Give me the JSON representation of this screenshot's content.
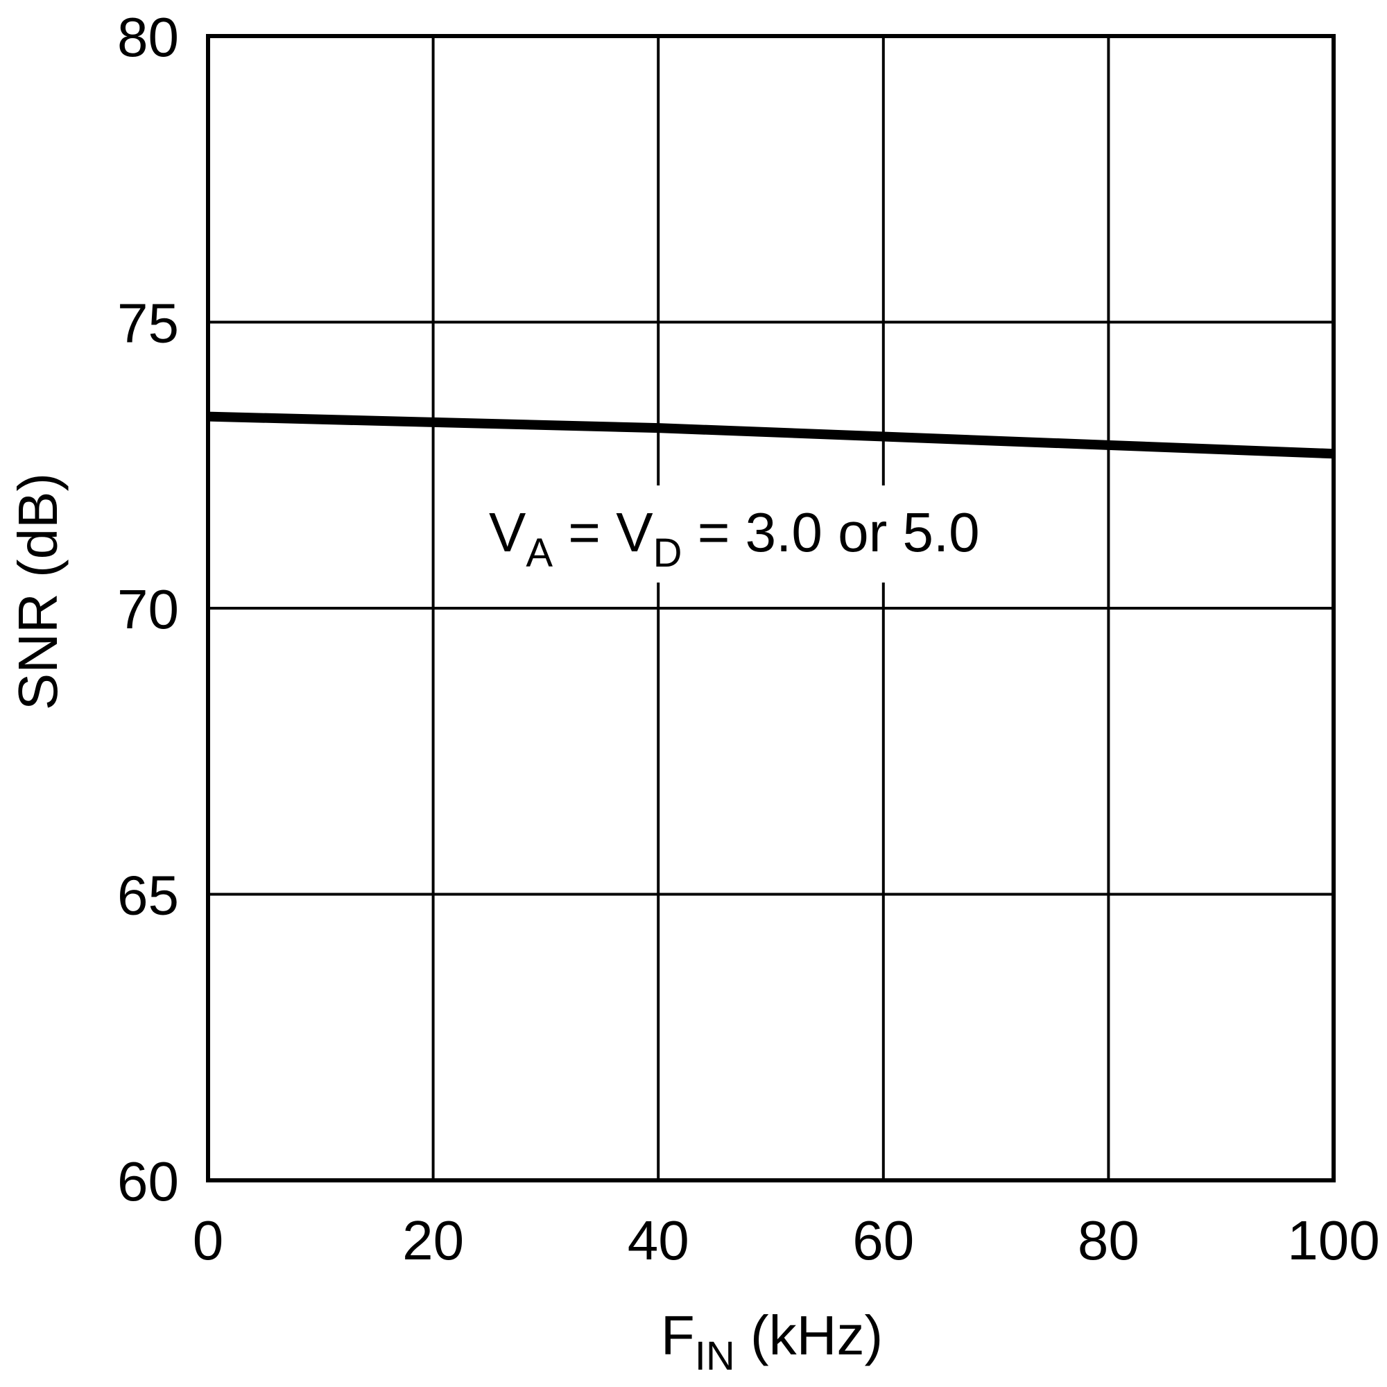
{
  "chart_data": {
    "type": "line",
    "title": "",
    "xlabel": {
      "main": "F",
      "sub": "IN",
      "unit": " (kHz)"
    },
    "ylabel": "SNR (dB)",
    "xlim": [
      0,
      100
    ],
    "ylim": [
      60,
      80
    ],
    "xticks": [
      "0",
      "20",
      "40",
      "60",
      "80",
      "100"
    ],
    "yticks": [
      "60",
      "65",
      "70",
      "75",
      "80"
    ],
    "grid": true,
    "series": [
      {
        "x": [
          0,
          20,
          40,
          60,
          80,
          100
        ],
        "y": [
          73.35,
          73.25,
          73.15,
          73.0,
          72.85,
          72.7
        ]
      }
    ],
    "annotations": {
      "supply": {
        "v1": "V",
        "s1": "A",
        "eq1": " = ",
        "v2": "V",
        "s2": "D",
        "rest": " = 3.0 or 5.0"
      }
    },
    "colors": {
      "line": "#000000",
      "grid": "#000000",
      "background": "#ffffff"
    }
  }
}
